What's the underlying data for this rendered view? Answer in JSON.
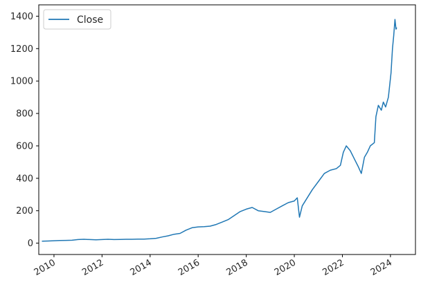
{
  "chart_data": {
    "type": "line",
    "title": "",
    "xlabel": "",
    "ylabel": "",
    "x_tick_labels": [
      "2010",
      "2012",
      "2014",
      "2016",
      "2018",
      "2020",
      "2022",
      "2024"
    ],
    "y_tick_labels": [
      "0",
      "200",
      "400",
      "600",
      "800",
      "1000",
      "1200",
      "1400"
    ],
    "xlim": [
      "2009-05-15",
      "2025-01-15"
    ],
    "ylim": [
      -70,
      1470
    ],
    "legend": {
      "placement": "upper-left",
      "entries": [
        "Close"
      ]
    },
    "grid": false,
    "series": [
      {
        "name": "Close",
        "color": "#1f77b4",
        "x": [
          "2009-07-01",
          "2009-10-01",
          "2010-01-01",
          "2010-04-01",
          "2010-07-01",
          "2010-10-01",
          "2011-01-01",
          "2011-04-01",
          "2011-07-01",
          "2011-10-01",
          "2012-01-01",
          "2012-04-01",
          "2012-07-01",
          "2012-10-01",
          "2013-01-01",
          "2013-04-01",
          "2013-07-01",
          "2013-10-01",
          "2014-01-01",
          "2014-04-01",
          "2014-07-01",
          "2014-10-01",
          "2015-01-01",
          "2015-04-01",
          "2015-07-01",
          "2015-10-01",
          "2016-01-01",
          "2016-04-01",
          "2016-07-01",
          "2016-10-01",
          "2017-01-01",
          "2017-04-01",
          "2017-07-01",
          "2017-10-01",
          "2018-01-01",
          "2018-04-01",
          "2018-07-01",
          "2018-10-01",
          "2019-01-01",
          "2019-04-01",
          "2019-07-01",
          "2019-10-01",
          "2020-01-01",
          "2020-02-15",
          "2020-03-20",
          "2020-05-01",
          "2020-07-01",
          "2020-10-01",
          "2021-01-01",
          "2021-04-01",
          "2021-07-01",
          "2021-10-01",
          "2021-12-01",
          "2022-01-15",
          "2022-03-01",
          "2022-05-01",
          "2022-07-01",
          "2022-09-01",
          "2022-10-15",
          "2022-12-01",
          "2023-01-15",
          "2023-03-01",
          "2023-05-01",
          "2023-05-25",
          "2023-07-01",
          "2023-08-15",
          "2023-09-15",
          "2023-10-20",
          "2023-12-01",
          "2024-01-10",
          "2024-02-01",
          "2024-02-20",
          "2024-03-10",
          "2024-03-25",
          "2024-04-05"
        ],
        "y": [
          12,
          13,
          15,
          16,
          17,
          18,
          22,
          24,
          22,
          21,
          22,
          24,
          22,
          23,
          24,
          24,
          25,
          25,
          27,
          30,
          38,
          45,
          55,
          60,
          80,
          95,
          100,
          102,
          105,
          115,
          130,
          145,
          170,
          195,
          210,
          220,
          200,
          195,
          190,
          210,
          230,
          250,
          260,
          280,
          160,
          230,
          270,
          330,
          380,
          430,
          450,
          460,
          480,
          560,
          600,
          570,
          520,
          470,
          430,
          530,
          560,
          600,
          620,
          780,
          850,
          820,
          870,
          840,
          900,
          1050,
          1200,
          1280,
          1380,
          1320,
          1330
        ]
      }
    ]
  }
}
